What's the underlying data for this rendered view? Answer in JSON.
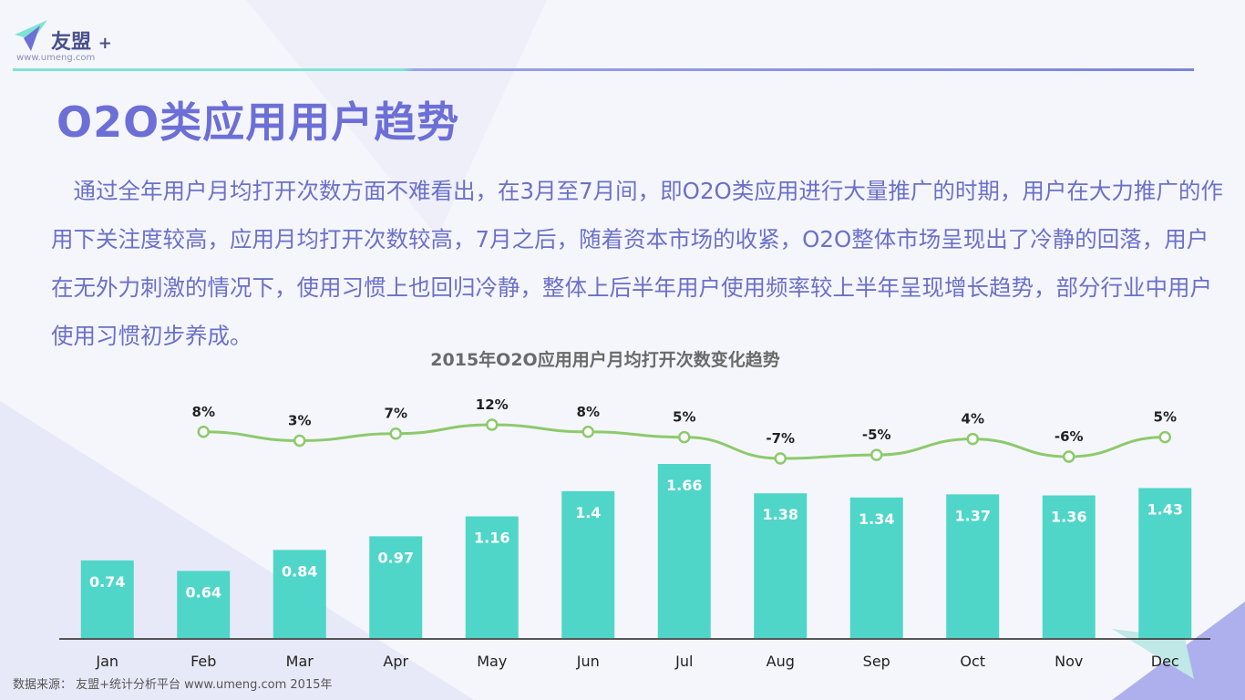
{
  "brand": {
    "name": "友盟",
    "plus": "+",
    "url": "www.umeng.com"
  },
  "page": {
    "title": "O2O类应用用户趋势",
    "paragraph": "　通过全年用户月均打开次数方面不难看出，在3月至7月间，即O2O类应用进行大量推广的时期，用户在大力推广的作用下关注度较高，应用月均打开次数较高，7月之后，随着资本市场的收紧，O2O整体市场呈现出了冷静的回落，用户在无外力刺激的情况下，使用习惯上也回归冷静，整体上后半年用户使用频率较上半年呈现增长趋势，部分行业中用户使用习惯初步养成。",
    "source": "数据来源： 友盟+统计分析平台 www.umeng.com 2015年"
  },
  "colors": {
    "bar": "#4fd6c8",
    "line": "#8cca6b",
    "title": "#6c6fd6",
    "text": "#6b70c9"
  },
  "chart_data": {
    "type": "bar",
    "title": "2015年O2O应用用户月均打开次数变化趋势",
    "categories": [
      "Jan",
      "Feb",
      "Mar",
      "Apr",
      "May",
      "Jun",
      "Jul",
      "Aug",
      "Sep",
      "Oct",
      "Nov",
      "Dec"
    ],
    "series": [
      {
        "type": "bar",
        "values": [
          0.74,
          0.64,
          0.84,
          0.97,
          1.16,
          1.4,
          1.66,
          1.38,
          1.34,
          1.37,
          1.36,
          1.43
        ]
      },
      {
        "type": "line",
        "values": [
          null,
          8,
          3,
          7,
          12,
          8,
          5,
          -7,
          -5,
          4,
          -6,
          5
        ],
        "labels": [
          "",
          "8%",
          "3%",
          "7%",
          "12%",
          "8%",
          "5%",
          "-7%",
          "-5%",
          "4%",
          "-6%",
          "5%"
        ]
      }
    ],
    "ylim": [
      0,
      1.66
    ],
    "line_ylim": [
      -7,
      12
    ]
  }
}
